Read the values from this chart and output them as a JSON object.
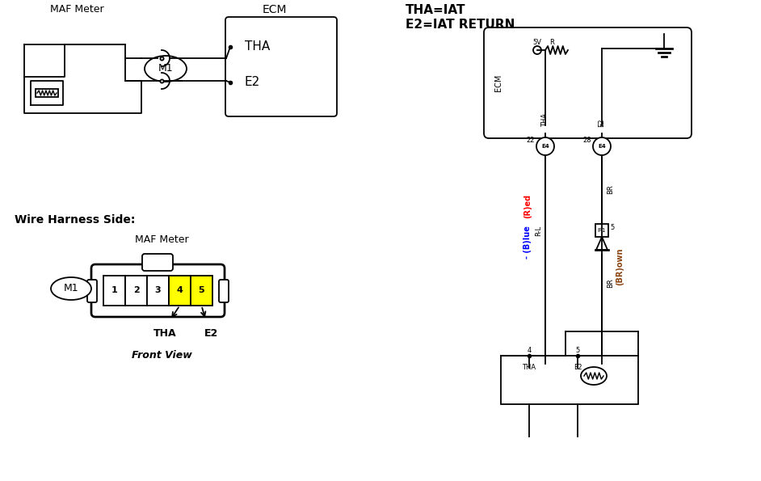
{
  "bg_color": "#ffffff",
  "line_color": "#000000",
  "label_maf_top": "MAF Meter",
  "label_ecm_top": "ECM",
  "label_tha": "THA",
  "label_e2": "E2",
  "label_wire_harness": "Wire Harness Side:",
  "label_maf_bottom": "MAF Meter",
  "label_m1_top": "M1",
  "label_m1_bottom": "M1",
  "label_front_view": "Front View",
  "pin_numbers": [
    "1",
    "2",
    "3",
    "4",
    "5"
  ],
  "yellow_pins": [
    3,
    4
  ],
  "label_tha_pin": "THA",
  "label_e2_pin": "E2",
  "red_text": "(R)ed",
  "blue_text": "(B)lue",
  "wire_label_rl": "R-L",
  "wire_label_br_top": "BR",
  "wire_label_br_bot": "BR",
  "label_if1": "IF1",
  "label_5_top": "5",
  "label_22": "22",
  "label_28": "28",
  "label_e4_left": "E4",
  "label_e4_right": "E4",
  "label_tha_conn": "THA",
  "label_e2_conn": "E2",
  "label_4": "4",
  "label_5_bot": "5",
  "label_5v": "5V",
  "label_r": "R",
  "label_ecm_right": "ECM",
  "brown_color": "#8B4513",
  "connector_yellow": "#FFFF00",
  "title_line1": "THA=IAT",
  "title_line2": "E2=IAT RETURN"
}
